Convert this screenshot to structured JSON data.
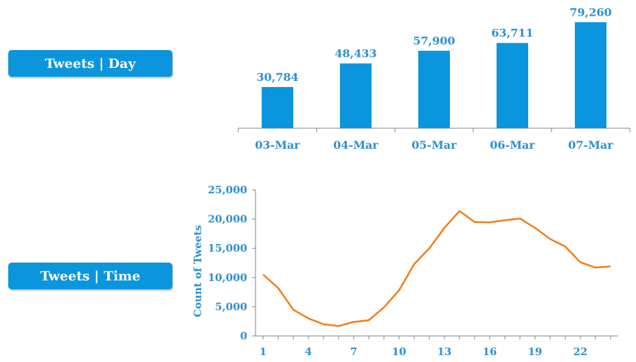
{
  "labels": {
    "day_box": "Tweets | Day",
    "time_box": "Tweets | Time"
  },
  "colors": {
    "box": "#0b95dc",
    "bar": "#0b95dc",
    "line": "#f47a15",
    "text": "#2e8fd0",
    "axis": "#808080"
  },
  "chart_data": [
    {
      "type": "bar",
      "categories": [
        "03-Mar",
        "04-Mar",
        "05-Mar",
        "06-Mar",
        "07-Mar"
      ],
      "values": [
        30784,
        48433,
        57900,
        63711,
        79260
      ],
      "data_labels": [
        "30,784",
        "48,433",
        "57,900",
        "63,711",
        "79,260"
      ],
      "ylim": [
        0,
        82000
      ]
    },
    {
      "type": "line",
      "ylabel": "Count of Tweets",
      "x": [
        1,
        2,
        3,
        4,
        5,
        6,
        7,
        8,
        9,
        10,
        11,
        12,
        13,
        14,
        15,
        16,
        17,
        18,
        19,
        20,
        21,
        22,
        23,
        24
      ],
      "x_ticks": [
        "1",
        "4",
        "7",
        "10",
        "13",
        "16",
        "19",
        "22"
      ],
      "x_tick_values": [
        1,
        4,
        7,
        10,
        13,
        16,
        19,
        22
      ],
      "series": [
        {
          "values": [
            10500,
            8200,
            4500,
            3000,
            2000,
            1700,
            2400,
            2700,
            4900,
            7800,
            12300,
            15000,
            18500,
            21400,
            19500,
            19450,
            19800,
            20100,
            18500,
            16600,
            15300,
            12600,
            11700,
            11900
          ]
        }
      ],
      "y_ticks": [
        "0",
        "5,000",
        "10,000",
        "15,000",
        "20,000",
        "25,000"
      ],
      "y_tick_values": [
        0,
        5000,
        10000,
        15000,
        20000,
        25000
      ],
      "ylim": [
        0,
        25000
      ],
      "xlim": [
        0.5,
        24.5
      ],
      "grid": false
    }
  ]
}
